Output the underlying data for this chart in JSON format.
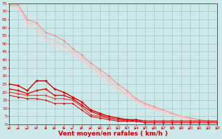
{
  "title": "",
  "xlabel": "Vent moyen/en rafales ( km/h )",
  "ylabel": "",
  "bg_color": "#cde8e8",
  "grid_color": "#a0c8c8",
  "x_ticks": [
    0,
    1,
    2,
    3,
    4,
    5,
    6,
    7,
    8,
    9,
    10,
    11,
    12,
    13,
    14,
    15,
    16,
    17,
    18,
    19,
    20,
    21,
    22,
    23
  ],
  "y_ticks": [
    0,
    5,
    10,
    15,
    20,
    25,
    30,
    35,
    40,
    45,
    50,
    55,
    60,
    65,
    70,
    75
  ],
  "xlim": [
    0,
    23
  ],
  "ylim": [
    0,
    75
  ],
  "lines_light": [
    {
      "x": [
        0,
        1,
        2,
        3,
        4,
        5,
        6,
        7,
        8,
        9,
        10,
        11,
        12,
        13,
        14,
        15,
        16,
        17,
        18,
        19,
        20,
        21,
        22,
        23
      ],
      "y": [
        74,
        74,
        65,
        63,
        57,
        55,
        52,
        47,
        43,
        38,
        34,
        30,
        25,
        21,
        16,
        13,
        11,
        9,
        7,
        5,
        4,
        3,
        2,
        1
      ],
      "color": "#ee9999",
      "lw": 0.9,
      "marker": "D",
      "ms": 1.8
    },
    {
      "x": [
        0,
        1,
        2,
        3,
        4,
        5,
        6,
        7,
        8,
        9,
        10,
        11,
        12,
        13,
        14,
        15,
        16,
        17,
        18,
        19,
        20,
        21,
        22,
        23
      ],
      "y": [
        73,
        73,
        63,
        62,
        54,
        52,
        49,
        45,
        41,
        36,
        32,
        28,
        23,
        19,
        15,
        12,
        10,
        8,
        6,
        5,
        3,
        2,
        1,
        1
      ],
      "color": "#ffbbbb",
      "lw": 0.8,
      "marker": "D",
      "ms": 1.5
    },
    {
      "x": [
        0,
        1,
        2,
        3,
        4,
        5,
        6,
        7,
        8,
        9,
        10,
        11,
        12,
        13,
        14,
        15,
        16,
        17,
        18,
        19,
        20,
        21,
        22,
        23
      ],
      "y": [
        72,
        72,
        62,
        58,
        52,
        49,
        46,
        43,
        40,
        34,
        30,
        26,
        21,
        18,
        14,
        11,
        9,
        8,
        6,
        4,
        3,
        2,
        1,
        1
      ],
      "color": "#ffcccc",
      "lw": 0.8,
      "marker": "D",
      "ms": 1.5
    }
  ],
  "lines_dark": [
    {
      "x": [
        0,
        1,
        2,
        3,
        4,
        5,
        6,
        7,
        8,
        9,
        10,
        11,
        12,
        13,
        14,
        15,
        16,
        17,
        18,
        19,
        20,
        21,
        22,
        23
      ],
      "y": [
        25,
        24,
        21,
        27,
        27,
        22,
        20,
        17,
        14,
        9,
        7,
        5,
        4,
        3,
        3,
        2,
        2,
        2,
        2,
        2,
        2,
        2,
        2,
        2
      ],
      "color": "#cc0000",
      "lw": 1.0,
      "marker": "D",
      "ms": 1.8
    },
    {
      "x": [
        0,
        1,
        2,
        3,
        4,
        5,
        6,
        7,
        8,
        9,
        10,
        11,
        12,
        13,
        14,
        15,
        16,
        17,
        18,
        19,
        20,
        21,
        22,
        23
      ],
      "y": [
        22,
        21,
        19,
        21,
        22,
        18,
        18,
        16,
        12,
        8,
        6,
        4,
        3,
        3,
        2,
        2,
        2,
        2,
        2,
        2,
        2,
        2,
        2,
        2
      ],
      "color": "#dd1111",
      "lw": 1.0,
      "marker": "D",
      "ms": 1.8
    },
    {
      "x": [
        0,
        1,
        2,
        3,
        4,
        5,
        6,
        7,
        8,
        9,
        10,
        11,
        12,
        13,
        14,
        15,
        16,
        17,
        18,
        19,
        20,
        21,
        22,
        23
      ],
      "y": [
        20,
        19,
        18,
        18,
        18,
        16,
        16,
        15,
        11,
        6,
        5,
        4,
        3,
        2,
        2,
        2,
        2,
        2,
        2,
        2,
        2,
        2,
        2,
        2
      ],
      "color": "#ee3333",
      "lw": 0.8,
      "marker": "D",
      "ms": 1.5
    },
    {
      "x": [
        0,
        1,
        2,
        3,
        4,
        5,
        6,
        7,
        8,
        9,
        10,
        11,
        12,
        13,
        14,
        15,
        16,
        17,
        18,
        19,
        20,
        21,
        22,
        23
      ],
      "y": [
        18,
        17,
        16,
        16,
        15,
        13,
        13,
        13,
        9,
        5,
        4,
        3,
        2,
        2,
        2,
        1,
        1,
        1,
        1,
        1,
        1,
        1,
        1,
        1
      ],
      "color": "#cc0000",
      "lw": 0.7,
      "marker": "D",
      "ms": 1.3
    }
  ],
  "arrow_angles": [
    90,
    75,
    60,
    120,
    150,
    90,
    45,
    60,
    90,
    75,
    90,
    60,
    90,
    120,
    90,
    75,
    60,
    90,
    120,
    90,
    60,
    90,
    75,
    90
  ],
  "xlabel_color": "#cc0000",
  "tick_color": "#cc0000",
  "xlabel_fontsize": 6.5,
  "tick_fontsize": 4.5
}
